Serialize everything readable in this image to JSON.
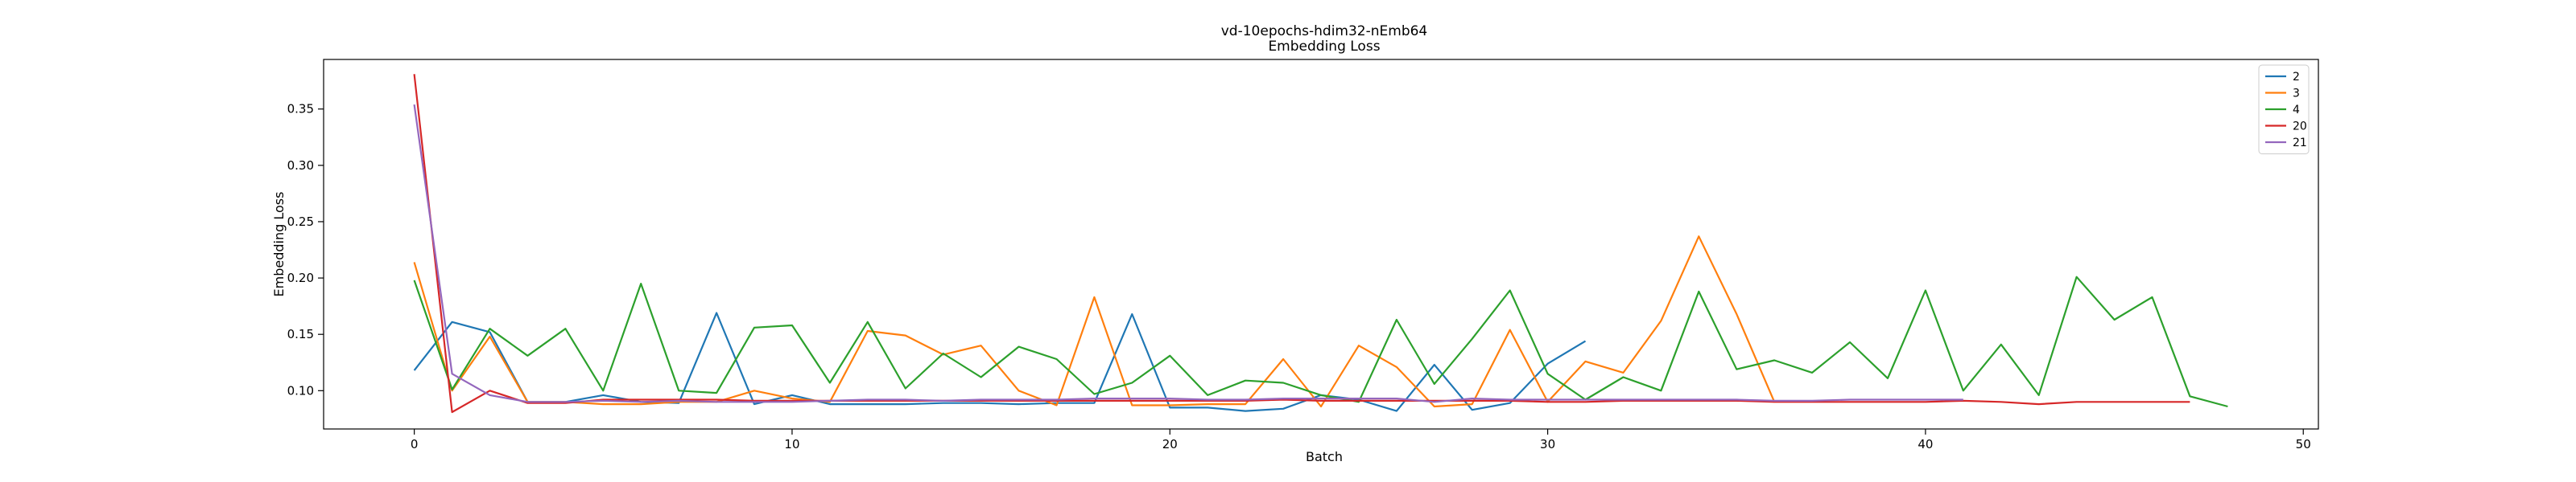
{
  "chart_data": {
    "type": "line",
    "title": "vd-10epochs-hdim32-nEmb64",
    "subtitle": "Embedding Loss",
    "xlabel": "Batch",
    "ylabel": "Embedding Loss",
    "xlim": [
      -2.4,
      50.4
    ],
    "ylim": [
      0.066,
      0.394
    ],
    "xticks": [
      0,
      10,
      20,
      30,
      40,
      50
    ],
    "yticks": [
      0.1,
      0.15,
      0.2,
      0.25,
      0.3,
      0.35
    ],
    "ytick_labels": [
      "0.10",
      "0.15",
      "0.20",
      "0.25",
      "0.30",
      "0.35"
    ],
    "grid": false,
    "legend_position": "top-right",
    "series": [
      {
        "name": "2",
        "color": "#1f77b4",
        "values": [
          0.118,
          0.161,
          0.152,
          0.09,
          0.09,
          0.096,
          0.09,
          0.089,
          0.169,
          0.088,
          0.096,
          0.088,
          0.088,
          0.088,
          0.089,
          0.089,
          0.088,
          0.089,
          0.089,
          0.168,
          0.085,
          0.085,
          0.082,
          0.084,
          0.096,
          0.092,
          0.082,
          0.123,
          0.083,
          0.089,
          0.124,
          0.144
        ]
      },
      {
        "name": "3",
        "color": "#ff7f0e",
        "values": [
          0.214,
          0.1,
          0.148,
          0.09,
          0.09,
          0.088,
          0.088,
          0.09,
          0.09,
          0.1,
          0.093,
          0.09,
          0.153,
          0.149,
          0.132,
          0.14,
          0.1,
          0.087,
          0.183,
          0.087,
          0.087,
          0.088,
          0.088,
          0.128,
          0.086,
          0.14,
          0.121,
          0.086,
          0.088,
          0.154,
          0.09,
          0.126,
          0.116,
          0.162,
          0.237,
          0.168,
          0.09
        ]
      },
      {
        "name": "4",
        "color": "#2ca02c",
        "values": [
          0.198,
          0.101,
          0.155,
          0.131,
          0.155,
          0.1,
          0.195,
          0.1,
          0.098,
          0.156,
          0.158,
          0.107,
          0.161,
          0.102,
          0.133,
          0.112,
          0.139,
          0.128,
          0.097,
          0.107,
          0.131,
          0.096,
          0.109,
          0.107,
          0.096,
          0.09,
          0.163,
          0.106,
          0.146,
          0.189,
          0.115,
          0.092,
          0.112,
          0.1,
          0.188,
          0.119,
          0.127,
          0.116,
          0.143,
          0.111,
          0.189,
          0.1,
          0.141,
          0.096,
          0.201,
          0.163,
          0.183,
          0.095,
          0.086
        ]
      },
      {
        "name": "20",
        "color": "#d62728",
        "values": [
          0.381,
          0.081,
          0.1,
          0.089,
          0.089,
          0.092,
          0.092,
          0.092,
          0.092,
          0.091,
          0.091,
          0.091,
          0.091,
          0.091,
          0.091,
          0.091,
          0.091,
          0.091,
          0.091,
          0.091,
          0.091,
          0.091,
          0.091,
          0.092,
          0.091,
          0.091,
          0.091,
          0.091,
          0.091,
          0.091,
          0.09,
          0.09,
          0.091,
          0.091,
          0.091,
          0.091,
          0.09,
          0.09,
          0.09,
          0.09,
          0.09,
          0.091,
          0.09,
          0.088,
          0.09,
          0.09,
          0.09,
          0.09
        ]
      },
      {
        "name": "21",
        "color": "#9467bd",
        "values": [
          0.354,
          0.115,
          0.096,
          0.09,
          0.09,
          0.091,
          0.09,
          0.091,
          0.09,
          0.09,
          0.09,
          0.091,
          0.092,
          0.092,
          0.091,
          0.092,
          0.092,
          0.092,
          0.093,
          0.093,
          0.093,
          0.092,
          0.092,
          0.093,
          0.093,
          0.093,
          0.093,
          0.09,
          0.093,
          0.092,
          0.092,
          0.092,
          0.092,
          0.092,
          0.092,
          0.092,
          0.091,
          0.091,
          0.092,
          0.092,
          0.092,
          0.092
        ]
      }
    ]
  }
}
